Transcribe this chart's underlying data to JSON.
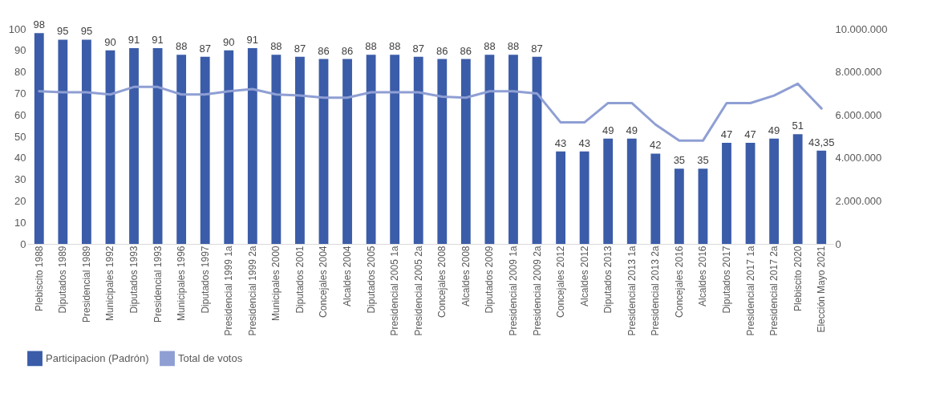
{
  "chart_data": {
    "type": "bar",
    "categories": [
      "Plebiscito 1988",
      "Diputados 1989",
      "Presidencial 1989",
      "Municipales 1992",
      "Diputados 1993",
      "Presidencial 1993",
      "Municipales 1996",
      "Diputados 1997",
      "Presidencial 1999 1a",
      "Presidencial 1999 2a",
      "Municipales 2000",
      "Diputados 2001",
      "Concejales 2004",
      "Alcaldes 2004",
      "Diputados 2005",
      "Presidencial 2005 1a",
      "Presidencial 2005 2a",
      "Concejales 2008",
      "Alcaldes 2008",
      "Diputados 2009",
      "Presidencial 2009 1a",
      "Presidencial 2009 2a",
      "Concejales 2012",
      "Alcaldes 2012",
      "Diputados 2013",
      "Presidencial 2013 1a",
      "Presidencial 2013 2a",
      "Concejales 2016",
      "Alcaldes 2016",
      "Diputados 2017",
      "Presidencial 2017 1a",
      "Presidencial 2017 2a",
      "Plebiscito 2020",
      "Elección Mayo 2021"
    ],
    "series": [
      {
        "name": "Participacion (Padrón)",
        "color": "#3b5ca8",
        "value_labels": [
          "98",
          "95",
          "95",
          "90",
          "91",
          "91",
          "88",
          "87",
          "90",
          "91",
          "88",
          "87",
          "86",
          "86",
          "88",
          "88",
          "87",
          "86",
          "86",
          "88",
          "88",
          "87",
          "43",
          "43",
          "49",
          "49",
          "42",
          "35",
          "35",
          "47",
          "47",
          "49",
          "51",
          "43,35"
        ],
        "values": [
          98,
          95,
          95,
          90,
          91,
          91,
          88,
          87,
          90,
          91,
          88,
          87,
          86,
          86,
          88,
          88,
          87,
          86,
          86,
          88,
          88,
          87,
          43,
          43,
          49,
          49,
          42,
          35,
          35,
          47,
          47,
          49,
          51,
          43.35
        ]
      },
      {
        "name": "Total de votos",
        "type": "line",
        "axis": "y2",
        "color": "#8f9fd4",
        "values": [
          7100000,
          7050000,
          7050000,
          6950000,
          7300000,
          7300000,
          6950000,
          6950000,
          7100000,
          7200000,
          6950000,
          6900000,
          6800000,
          6800000,
          7050000,
          7050000,
          7050000,
          6850000,
          6800000,
          7100000,
          7100000,
          7000000,
          5650000,
          5650000,
          6550000,
          6550000,
          5550000,
          4800000,
          4800000,
          6550000,
          6550000,
          6900000,
          7450000,
          6300000
        ]
      }
    ],
    "ylim": [
      0,
      100
    ],
    "yticks": [
      0,
      10,
      20,
      30,
      40,
      50,
      60,
      70,
      80,
      90,
      100
    ],
    "y2lim": [
      0,
      10000000
    ],
    "y2ticks": [
      {
        "value": 0,
        "label": "0"
      },
      {
        "value": 2000000,
        "label": "2.000.000"
      },
      {
        "value": 4000000,
        "label": "4.000.000"
      },
      {
        "value": 6000000,
        "label": "6.000.000"
      },
      {
        "value": 8000000,
        "label": "8.000.000"
      },
      {
        "value": 10000000,
        "label": "10.000.000"
      }
    ],
    "grid": false,
    "legend": "bottom"
  }
}
